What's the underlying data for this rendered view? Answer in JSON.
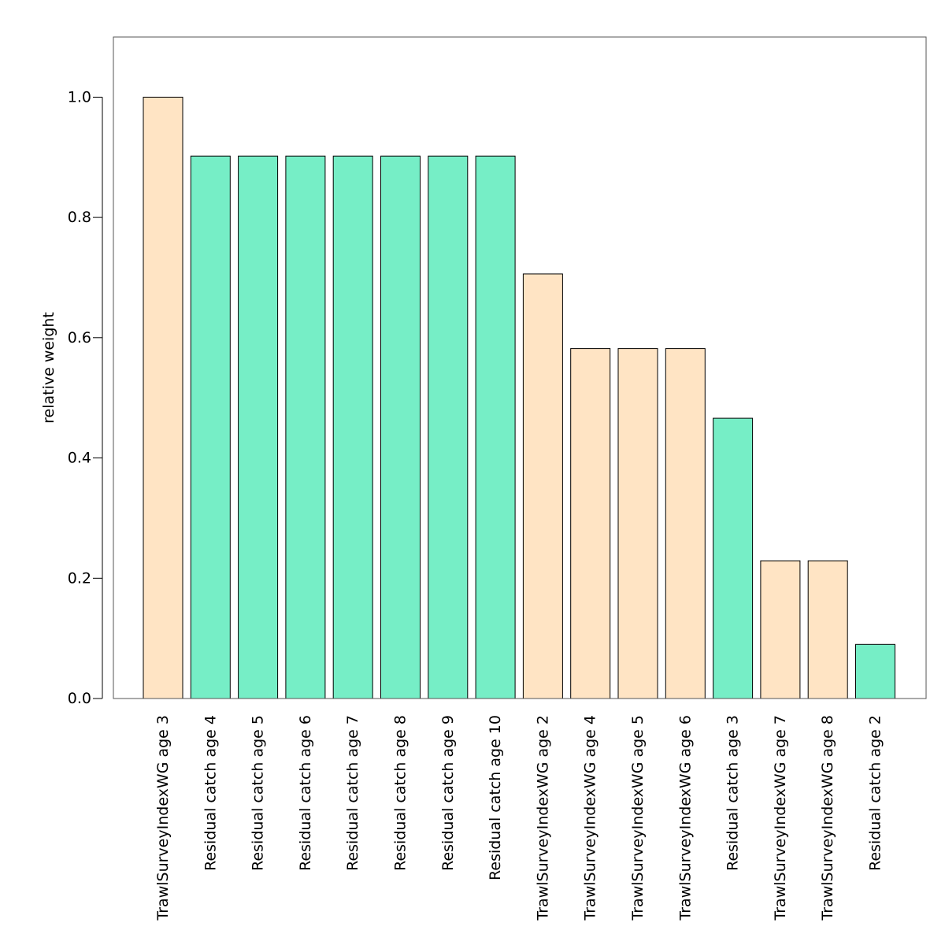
{
  "chart_data": {
    "type": "bar",
    "title": "",
    "xlabel": "",
    "ylabel": "relative weight",
    "ylim": [
      0,
      1.1
    ],
    "yticks": [
      0.0,
      0.2,
      0.4,
      0.6,
      0.8,
      1.0
    ],
    "ytick_labels": [
      "0.0",
      "0.2",
      "0.4",
      "0.6",
      "0.8",
      "1.0"
    ],
    "grid": false,
    "legend": "none",
    "categories": [
      "TrawlSurveyIndexWG age 3",
      "Residual catch age 4",
      "Residual catch age 5",
      "Residual catch age 6",
      "Residual catch age 7",
      "Residual catch age 8",
      "Residual catch age 9",
      "Residual catch age 10",
      "TrawlSurveyIndexWG age 2",
      "TrawlSurveyIndexWG age 4",
      "TrawlSurveyIndexWG age 5",
      "TrawlSurveyIndexWG age 6",
      "Residual catch age 3",
      "TrawlSurveyIndexWG age 7",
      "TrawlSurveyIndexWG age 8",
      "Residual catch age 2"
    ],
    "values": [
      1.0,
      0.902,
      0.902,
      0.902,
      0.902,
      0.902,
      0.902,
      0.902,
      0.706,
      0.582,
      0.582,
      0.582,
      0.466,
      0.229,
      0.229,
      0.09
    ],
    "bar_groups": [
      "survey",
      "catch",
      "catch",
      "catch",
      "catch",
      "catch",
      "catch",
      "catch",
      "survey",
      "survey",
      "survey",
      "survey",
      "catch",
      "survey",
      "survey",
      "catch"
    ],
    "colors": {
      "survey": "#FFE4C4",
      "catch": "#76EEC6",
      "bar_edge": "#000000",
      "frame": "#555555"
    }
  }
}
